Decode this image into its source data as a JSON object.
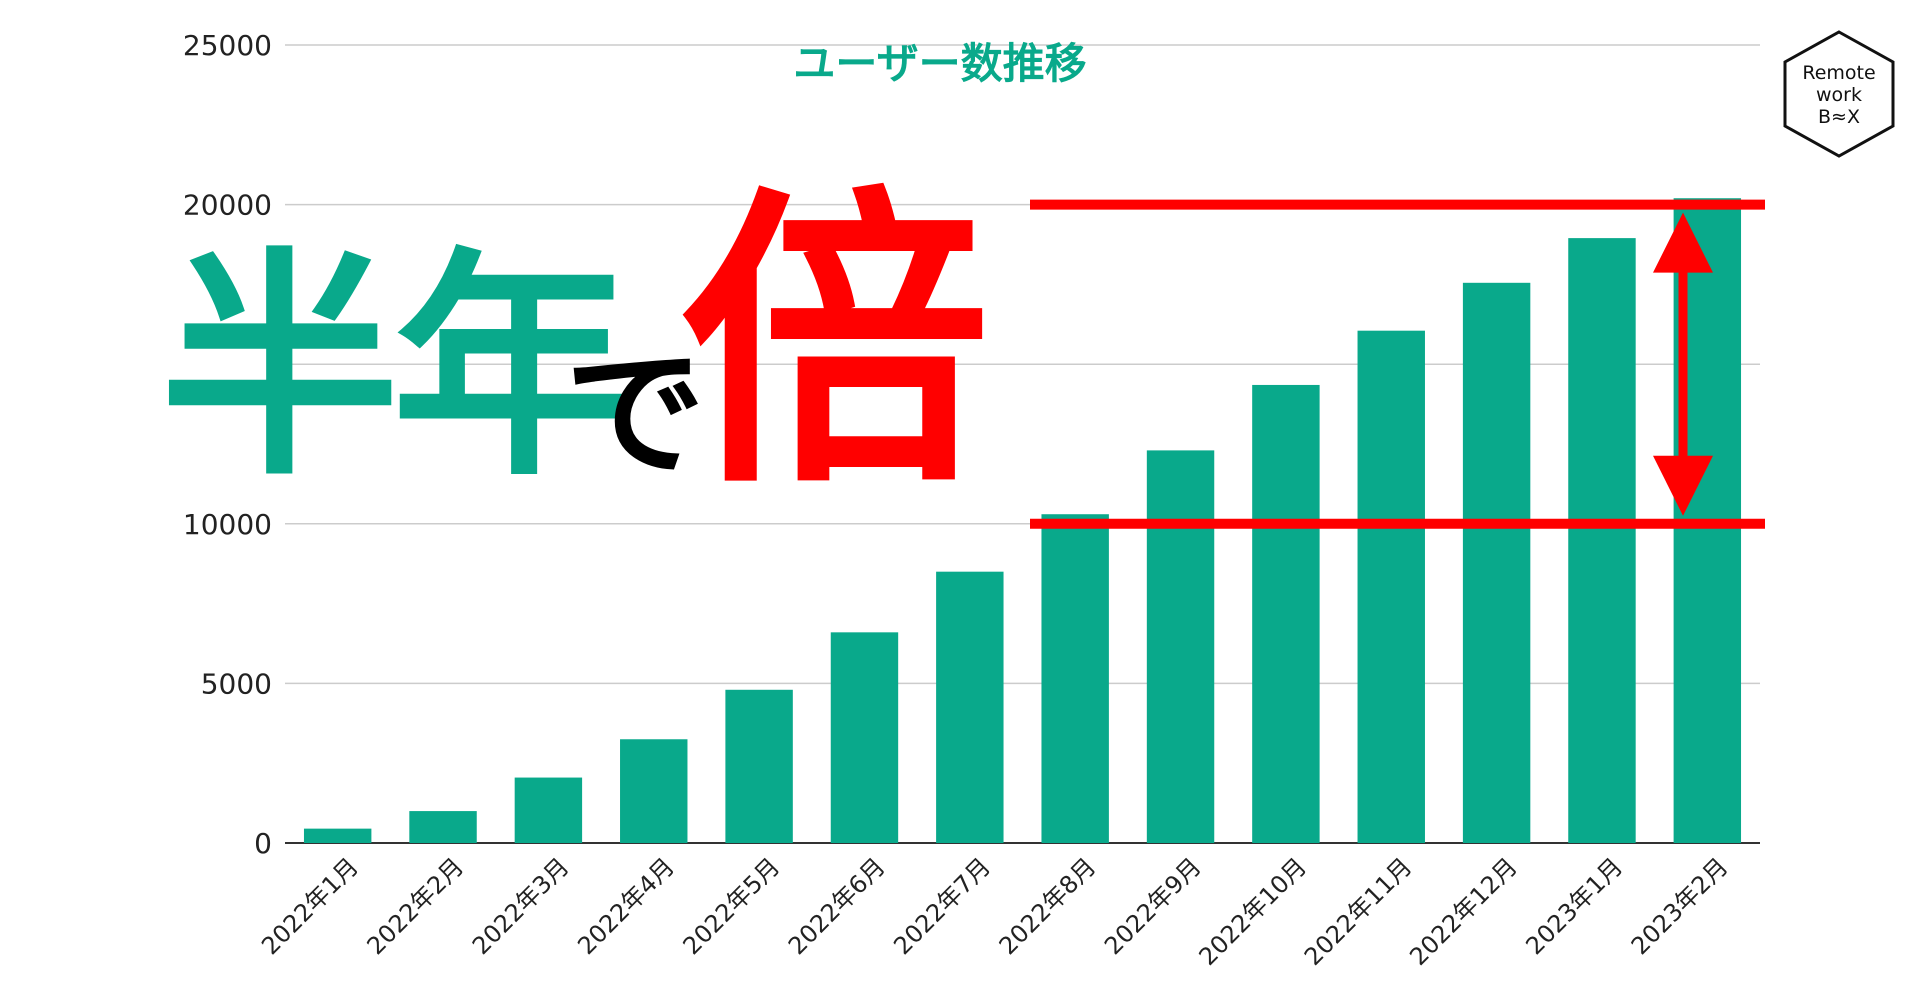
{
  "chart_data": {
    "type": "bar",
    "title": "ユーザー数推移",
    "categories": [
      "2022年1月",
      "2022年2月",
      "2022年3月",
      "2022年4月",
      "2022年5月",
      "2022年6月",
      "2022年7月",
      "2022年8月",
      "2022年9月",
      "2022年10月",
      "2022年11月",
      "2022年12月",
      "2023年1月",
      "2023年2月"
    ],
    "values": [
      450,
      1000,
      2050,
      3250,
      4800,
      6600,
      8500,
      10300,
      12300,
      14350,
      16050,
      17550,
      18950,
      20200
    ],
    "ylim": [
      0,
      25000
    ],
    "yticks": [
      0,
      5000,
      10000,
      20000,
      25000
    ],
    "grid": true,
    "bar_color": "#09a98b",
    "annotation": {
      "lines_at": [
        20000,
        10000
      ],
      "line_color": "#ff0000",
      "arrow": "double-vertical"
    }
  },
  "headline": {
    "part1": "半年で",
    "part1_main": "半年",
    "part1_de": "で",
    "part2": "倍",
    "color_green": "#09a98b",
    "color_black": "#000000",
    "color_red": "#ff0000"
  },
  "logo": {
    "line1": "Remote",
    "line2": "work",
    "line3": "B≈X",
    "icon": "hexagon-house-logo"
  }
}
